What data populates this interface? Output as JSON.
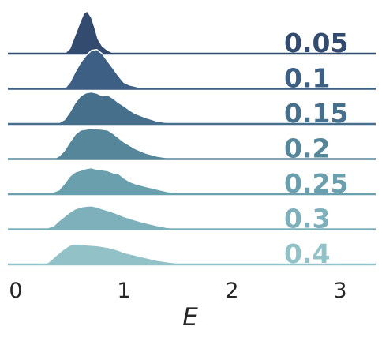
{
  "chart_data": {
    "type": "area",
    "xlabel": "E",
    "xlim": [
      -0.05,
      3.35
    ],
    "x_ticks": [
      0,
      1,
      2,
      3
    ],
    "x_tick_labels": [
      "0",
      "1",
      "2",
      "3"
    ],
    "series": [
      {
        "name": "0.05",
        "color": "#324b6e",
        "x": [
          0.45,
          0.5,
          0.55,
          0.6,
          0.63,
          0.66,
          0.7,
          0.73,
          0.76,
          0.8,
          0.85,
          0.9,
          0.95
        ],
        "y": [
          0.0,
          0.12,
          0.45,
          0.78,
          0.95,
          1.0,
          0.85,
          0.62,
          0.35,
          0.18,
          0.08,
          0.02,
          0.0
        ]
      },
      {
        "name": "0.1",
        "color": "#3c5f83",
        "x": [
          0.45,
          0.5,
          0.55,
          0.6,
          0.65,
          0.7,
          0.75,
          0.8,
          0.85,
          0.9,
          0.95,
          1.0,
          1.05,
          1.1,
          1.15,
          1.2
        ],
        "y": [
          0.0,
          0.15,
          0.4,
          0.62,
          0.78,
          0.9,
          0.92,
          0.82,
          0.65,
          0.48,
          0.3,
          0.15,
          0.09,
          0.06,
          0.03,
          0.0
        ]
      },
      {
        "name": "0.15",
        "color": "#466f8c",
        "x": [
          0.38,
          0.45,
          0.5,
          0.55,
          0.6,
          0.65,
          0.7,
          0.75,
          0.8,
          0.85,
          0.9,
          0.95,
          1.0,
          1.05,
          1.1,
          1.2,
          1.3,
          1.4,
          1.5
        ],
        "y": [
          0.0,
          0.1,
          0.28,
          0.5,
          0.66,
          0.73,
          0.75,
          0.72,
          0.66,
          0.68,
          0.6,
          0.5,
          0.42,
          0.33,
          0.25,
          0.15,
          0.07,
          0.03,
          0.0
        ]
      },
      {
        "name": "0.2",
        "color": "#568699",
        "x": [
          0.35,
          0.4,
          0.45,
          0.5,
          0.55,
          0.6,
          0.65,
          0.7,
          0.75,
          0.8,
          0.85,
          0.9,
          0.95,
          1.0,
          1.1,
          1.2,
          1.3,
          1.4,
          1.5
        ],
        "y": [
          0.0,
          0.07,
          0.2,
          0.4,
          0.58,
          0.68,
          0.7,
          0.72,
          0.71,
          0.7,
          0.68,
          0.6,
          0.5,
          0.4,
          0.25,
          0.14,
          0.07,
          0.03,
          0.0
        ]
      },
      {
        "name": "0.25",
        "color": "#6a9fad",
        "x": [
          0.3,
          0.4,
          0.45,
          0.5,
          0.55,
          0.6,
          0.65,
          0.7,
          0.75,
          0.8,
          0.85,
          0.9,
          0.95,
          1.0,
          1.05,
          1.1,
          1.2,
          1.3,
          1.4,
          1.55
        ],
        "y": [
          0.0,
          0.1,
          0.25,
          0.42,
          0.52,
          0.56,
          0.6,
          0.62,
          0.58,
          0.57,
          0.55,
          0.5,
          0.48,
          0.38,
          0.3,
          0.25,
          0.18,
          0.12,
          0.06,
          0.0
        ]
      },
      {
        "name": "0.3",
        "color": "#7eb0bb",
        "x": [
          0.25,
          0.35,
          0.4,
          0.45,
          0.5,
          0.55,
          0.6,
          0.65,
          0.7,
          0.75,
          0.8,
          0.85,
          0.9,
          0.95,
          1.0,
          1.1,
          1.2,
          1.3,
          1.4,
          1.55
        ],
        "y": [
          0.0,
          0.08,
          0.2,
          0.3,
          0.4,
          0.48,
          0.52,
          0.54,
          0.55,
          0.52,
          0.48,
          0.44,
          0.4,
          0.35,
          0.3,
          0.22,
          0.15,
          0.09,
          0.04,
          0.0
        ]
      },
      {
        "name": "0.4",
        "color": "#92c2c7",
        "x": [
          0.25,
          0.3,
          0.35,
          0.4,
          0.45,
          0.5,
          0.55,
          0.6,
          0.65,
          0.7,
          0.75,
          0.8,
          0.85,
          0.9,
          0.95,
          1.0,
          1.1,
          1.2,
          1.3,
          1.4,
          1.5,
          1.6,
          1.75
        ],
        "y": [
          0.0,
          0.05,
          0.16,
          0.27,
          0.37,
          0.45,
          0.48,
          0.48,
          0.46,
          0.45,
          0.44,
          0.42,
          0.4,
          0.37,
          0.33,
          0.28,
          0.22,
          0.16,
          0.1,
          0.06,
          0.03,
          0.015,
          0.0
        ]
      }
    ]
  }
}
